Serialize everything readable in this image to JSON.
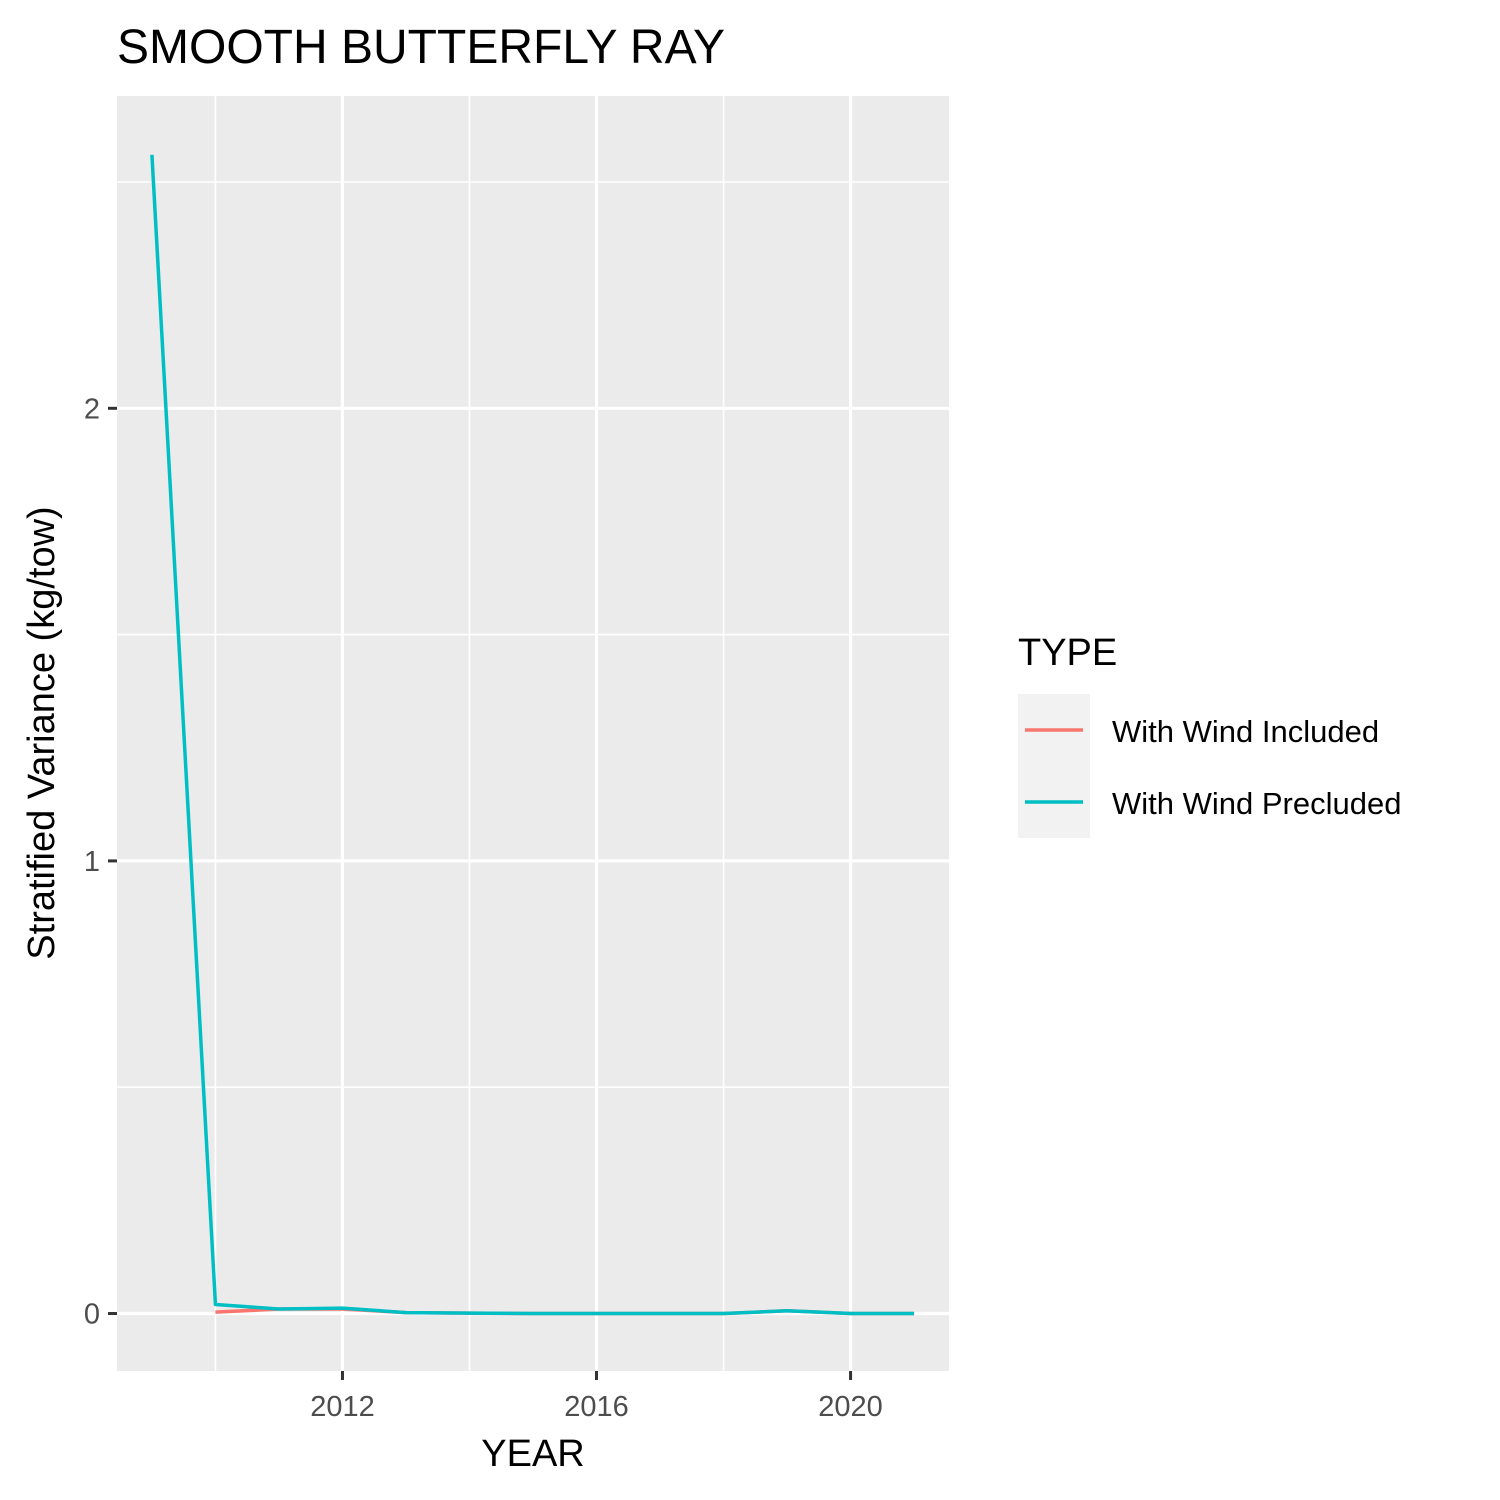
{
  "chart_data": {
    "type": "line",
    "title": "SMOOTH BUTTERFLY RAY",
    "xlabel": "YEAR",
    "ylabel": "Stratified Variance (kg/tow)",
    "x": [
      2009,
      2010,
      2011,
      2012,
      2013,
      2014,
      2015,
      2016,
      2017,
      2018,
      2019,
      2020,
      2021
    ],
    "series": [
      {
        "name": "With Wind Included",
        "color": "#F8766D",
        "x": [
          2010,
          2011,
          2012,
          2013,
          2014,
          2015,
          2016,
          2017,
          2018,
          2019,
          2020,
          2021
        ],
        "values": [
          0.003,
          0.01,
          0.01,
          0.002,
          0.001,
          0.0,
          0.0,
          0.0,
          0.0,
          0.006,
          0.0,
          0.0
        ]
      },
      {
        "name": "With Wind Precluded",
        "color": "#00BFC4",
        "x": [
          2009,
          2010,
          2011,
          2012,
          2013,
          2014,
          2015,
          2016,
          2017,
          2018,
          2019,
          2020,
          2021
        ],
        "values": [
          2.56,
          0.02,
          0.01,
          0.012,
          0.002,
          0.001,
          0.0,
          0.0,
          0.0,
          0.0,
          0.006,
          0.0,
          0.0
        ]
      }
    ],
    "xlim": [
      2008.45,
      2021.55
    ],
    "ylim": [
      -0.127,
      2.69
    ],
    "x_ticks": [
      2012,
      2016,
      2020
    ],
    "x_minor": [
      2010,
      2014,
      2018
    ],
    "y_ticks": [
      0,
      1,
      2
    ],
    "y_minor": [
      0.5,
      1.5,
      2.5
    ],
    "grid": true,
    "legend": {
      "title": "TYPE",
      "placement": "right"
    },
    "colors": {
      "panel_bg": "#EBEBEB",
      "grid": "#FFFFFF",
      "legend_key_bg": "#F2F2F2",
      "tick_text": "#4D4D4D",
      "tick_mark": "#333333"
    }
  }
}
